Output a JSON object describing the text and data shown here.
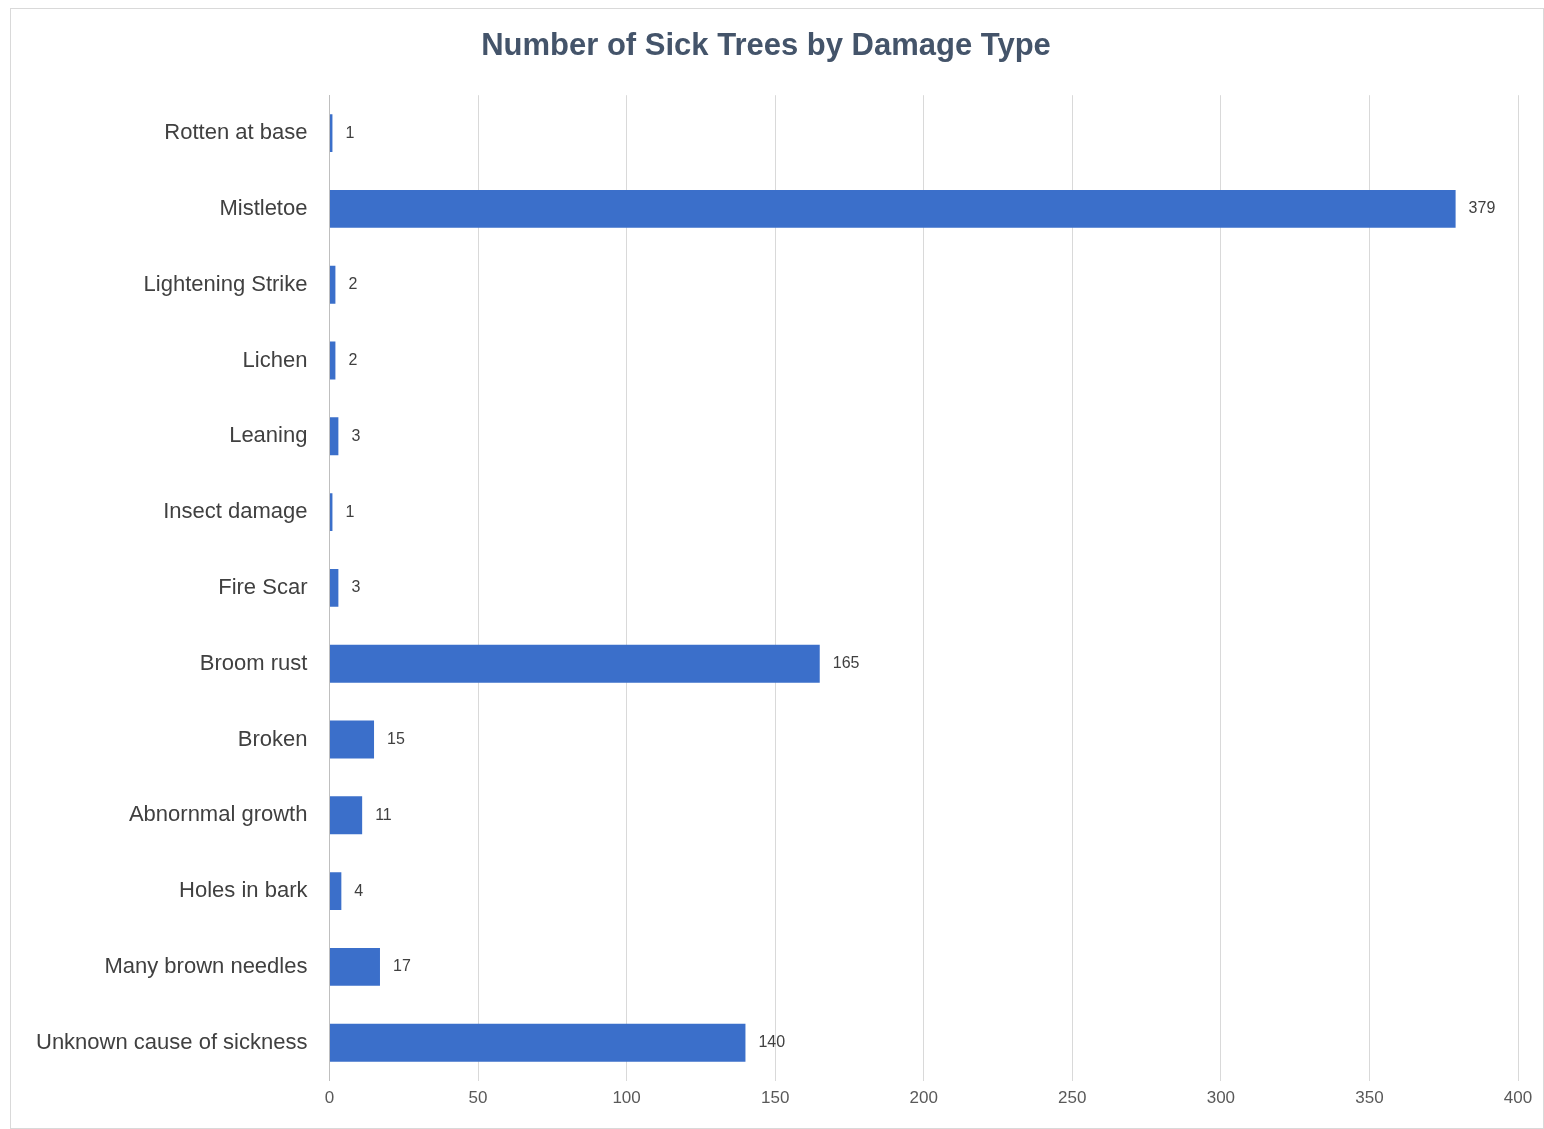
{
  "chart_data": {
    "type": "bar",
    "orientation": "horizontal",
    "title": "Number of Sick Trees by Damage Type",
    "categories": [
      "Rotten at base",
      "Mistletoe",
      "Lightening Strike",
      "Lichen",
      "Leaning",
      "Insect damage",
      "Fire Scar",
      "Broom rust",
      "Broken",
      "Abnornmal growth",
      "Holes in bark",
      "Many brown needles",
      "Unknown cause of sickness"
    ],
    "values": [
      1,
      379,
      2,
      2,
      3,
      1,
      3,
      165,
      15,
      11,
      4,
      17,
      140
    ],
    "color": "#3b6fca",
    "xlim": [
      0,
      400
    ],
    "xticks": [
      0,
      50,
      100,
      150,
      200,
      250,
      300,
      350,
      400
    ],
    "grid": "x",
    "data_labels": true,
    "legend": false
  }
}
